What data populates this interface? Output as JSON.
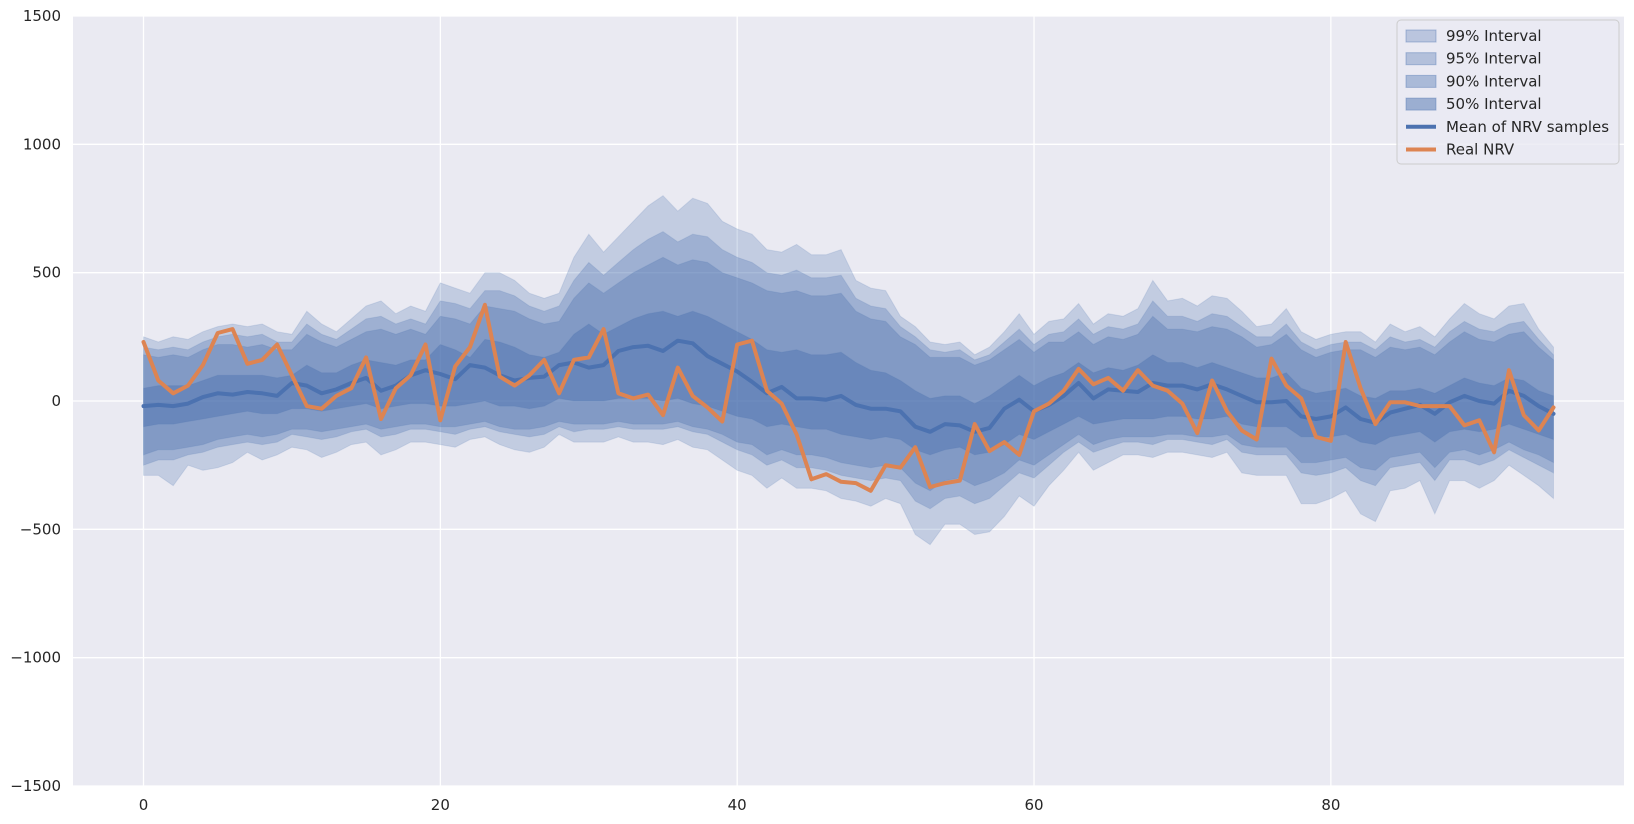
{
  "chart_data": {
    "type": "line",
    "title": "",
    "xlabel": "",
    "ylabel": "",
    "xlim": [
      -4.75,
      99.75
    ],
    "ylim": [
      -1500,
      1500
    ],
    "x_ticks": [
      0,
      20,
      40,
      60,
      80
    ],
    "y_ticks": [
      -1500,
      -1000,
      -500,
      0,
      500,
      1000,
      1500
    ],
    "x_tick_labels": [
      "0",
      "20",
      "40",
      "60",
      "80"
    ],
    "y_tick_labels": [
      "−1500",
      "−1000",
      "−500",
      "0",
      "500",
      "1000",
      "1500"
    ],
    "grid": true,
    "legend_position": "top-right",
    "colors": {
      "background": "#eaeaf2",
      "grid": "#ffffff",
      "band": "#4c72b0",
      "mean": "#4c72b0",
      "real": "#dd8452"
    },
    "x": [
      0,
      1,
      2,
      3,
      4,
      5,
      6,
      7,
      8,
      9,
      10,
      11,
      12,
      13,
      14,
      15,
      16,
      17,
      18,
      19,
      20,
      21,
      22,
      23,
      24,
      25,
      26,
      27,
      28,
      29,
      30,
      31,
      32,
      33,
      34,
      35,
      36,
      37,
      38,
      39,
      40,
      41,
      42,
      43,
      44,
      45,
      46,
      47,
      48,
      49,
      50,
      51,
      52,
      53,
      54,
      55,
      56,
      57,
      58,
      59,
      60,
      61,
      62,
      63,
      64,
      65,
      66,
      67,
      68,
      69,
      70,
      71,
      72,
      73,
      74,
      75,
      76,
      77,
      78,
      79,
      80,
      81,
      82,
      83,
      84,
      85,
      86,
      87,
      88,
      89,
      90,
      91,
      92,
      93,
      94,
      95
    ],
    "bands": [
      {
        "name": "99% Interval",
        "opacity": 0.25,
        "lower": [
          -290,
          -290,
          -330,
          -250,
          -270,
          -260,
          -240,
          -200,
          -230,
          -210,
          -180,
          -190,
          -220,
          -200,
          -170,
          -160,
          -210,
          -190,
          -160,
          -160,
          -170,
          -180,
          -150,
          -140,
          -170,
          -190,
          -200,
          -180,
          -130,
          -160,
          -160,
          -160,
          -140,
          -160,
          -160,
          -170,
          -150,
          -180,
          -190,
          -230,
          -270,
          -290,
          -340,
          -300,
          -340,
          -340,
          -350,
          -380,
          -390,
          -410,
          -380,
          -400,
          -520,
          -560,
          -480,
          -480,
          -520,
          -510,
          -450,
          -370,
          -410,
          -330,
          -270,
          -200,
          -270,
          -240,
          -210,
          -210,
          -220,
          -200,
          -200,
          -210,
          -220,
          -200,
          -280,
          -290,
          -290,
          -290,
          -400,
          -400,
          -380,
          -350,
          -440,
          -470,
          -350,
          -340,
          -310,
          -440,
          -310,
          -310,
          -340,
          -310,
          -250,
          -290,
          -330,
          -380
        ],
        "upper": [
          250,
          230,
          250,
          240,
          270,
          290,
          300,
          290,
          300,
          270,
          260,
          350,
          300,
          270,
          320,
          370,
          390,
          340,
          370,
          350,
          460,
          440,
          420,
          500,
          500,
          470,
          420,
          400,
          420,
          560,
          650,
          580,
          640,
          700,
          760,
          800,
          740,
          790,
          770,
          700,
          670,
          650,
          590,
          580,
          610,
          570,
          570,
          590,
          470,
          440,
          430,
          330,
          290,
          230,
          220,
          230,
          180,
          210,
          270,
          340,
          260,
          310,
          320,
          380,
          300,
          340,
          330,
          360,
          470,
          390,
          400,
          370,
          410,
          400,
          350,
          290,
          300,
          360,
          270,
          240,
          260,
          270,
          270,
          230,
          300,
          270,
          290,
          250,
          320,
          380,
          340,
          320,
          370,
          380,
          280,
          210
        ]
      },
      {
        "name": "95% Interval",
        "opacity": 0.3,
        "lower": [
          -250,
          -230,
          -230,
          -210,
          -200,
          -180,
          -170,
          -160,
          -170,
          -160,
          -130,
          -140,
          -150,
          -140,
          -120,
          -110,
          -140,
          -130,
          -110,
          -110,
          -120,
          -130,
          -110,
          -100,
          -120,
          -130,
          -140,
          -130,
          -100,
          -120,
          -110,
          -110,
          -100,
          -110,
          -110,
          -110,
          -100,
          -120,
          -130,
          -160,
          -190,
          -210,
          -250,
          -230,
          -260,
          -260,
          -270,
          -290,
          -300,
          -310,
          -300,
          -310,
          -390,
          -420,
          -380,
          -370,
          -400,
          -380,
          -330,
          -280,
          -300,
          -250,
          -200,
          -160,
          -200,
          -180,
          -160,
          -160,
          -170,
          -150,
          -150,
          -160,
          -170,
          -150,
          -200,
          -210,
          -210,
          -210,
          -280,
          -290,
          -280,
          -260,
          -310,
          -330,
          -260,
          -250,
          -240,
          -310,
          -230,
          -230,
          -250,
          -230,
          -190,
          -220,
          -250,
          -280
        ],
        "upper": [
          210,
          200,
          210,
          200,
          230,
          250,
          260,
          250,
          260,
          230,
          230,
          300,
          260,
          240,
          280,
          320,
          330,
          300,
          320,
          300,
          390,
          380,
          360,
          430,
          430,
          410,
          370,
          350,
          370,
          470,
          540,
          490,
          540,
          590,
          630,
          660,
          620,
          650,
          640,
          590,
          560,
          540,
          500,
          490,
          510,
          480,
          480,
          490,
          400,
          370,
          360,
          290,
          250,
          200,
          190,
          200,
          160,
          180,
          230,
          280,
          220,
          260,
          270,
          320,
          260,
          290,
          280,
          300,
          390,
          330,
          330,
          310,
          340,
          330,
          290,
          250,
          250,
          300,
          230,
          200,
          220,
          230,
          230,
          200,
          250,
          230,
          240,
          210,
          270,
          310,
          280,
          270,
          300,
          310,
          240,
          180
        ]
      },
      {
        "name": "90% Interval",
        "opacity": 0.35,
        "lower": [
          -210,
          -190,
          -190,
          -180,
          -170,
          -150,
          -140,
          -130,
          -140,
          -130,
          -110,
          -110,
          -120,
          -110,
          -100,
          -90,
          -110,
          -100,
          -90,
          -90,
          -100,
          -100,
          -90,
          -80,
          -100,
          -110,
          -110,
          -100,
          -80,
          -90,
          -90,
          -90,
          -80,
          -90,
          -90,
          -90,
          -80,
          -100,
          -110,
          -130,
          -160,
          -170,
          -210,
          -190,
          -210,
          -210,
          -220,
          -240,
          -250,
          -260,
          -250,
          -260,
          -320,
          -350,
          -310,
          -300,
          -330,
          -310,
          -280,
          -230,
          -250,
          -210,
          -170,
          -130,
          -170,
          -150,
          -140,
          -140,
          -140,
          -130,
          -130,
          -140,
          -140,
          -130,
          -170,
          -180,
          -180,
          -180,
          -240,
          -240,
          -230,
          -220,
          -260,
          -270,
          -220,
          -210,
          -200,
          -260,
          -200,
          -190,
          -210,
          -190,
          -160,
          -190,
          -210,
          -240
        ],
        "upper": [
          180,
          170,
          180,
          170,
          200,
          220,
          220,
          210,
          220,
          200,
          200,
          260,
          230,
          210,
          240,
          270,
          280,
          260,
          280,
          260,
          330,
          320,
          300,
          370,
          360,
          350,
          320,
          300,
          310,
          400,
          460,
          420,
          460,
          500,
          530,
          560,
          530,
          550,
          540,
          500,
          480,
          460,
          430,
          420,
          430,
          410,
          410,
          420,
          350,
          320,
          310,
          250,
          220,
          170,
          170,
          170,
          140,
          160,
          200,
          240,
          190,
          230,
          230,
          270,
          220,
          250,
          240,
          260,
          330,
          280,
          280,
          270,
          290,
          280,
          250,
          210,
          220,
          260,
          200,
          170,
          190,
          200,
          200,
          170,
          210,
          200,
          210,
          180,
          230,
          270,
          240,
          230,
          260,
          270,
          210,
          160
        ]
      },
      {
        "name": "50% Interval",
        "opacity": 0.45,
        "lower": [
          -100,
          -90,
          -90,
          -80,
          -70,
          -60,
          -50,
          -40,
          -50,
          -50,
          -30,
          -30,
          -40,
          -30,
          -20,
          -10,
          -30,
          -20,
          -10,
          -10,
          -20,
          -20,
          -10,
          0,
          -20,
          -20,
          -30,
          -20,
          10,
          0,
          0,
          0,
          10,
          10,
          10,
          0,
          10,
          -10,
          -20,
          -40,
          -60,
          -70,
          -100,
          -90,
          -100,
          -110,
          -110,
          -130,
          -140,
          -150,
          -140,
          -150,
          -190,
          -210,
          -190,
          -180,
          -210,
          -200,
          -170,
          -130,
          -150,
          -120,
          -90,
          -60,
          -90,
          -80,
          -70,
          -70,
          -70,
          -60,
          -60,
          -70,
          -70,
          -60,
          -90,
          -100,
          -100,
          -100,
          -140,
          -140,
          -140,
          -130,
          -160,
          -170,
          -140,
          -130,
          -120,
          -160,
          -120,
          -110,
          -120,
          -110,
          -90,
          -110,
          -130,
          -150
        ],
        "upper": [
          50,
          60,
          60,
          60,
          80,
          100,
          100,
          100,
          100,
          90,
          100,
          140,
          110,
          110,
          140,
          160,
          150,
          140,
          160,
          160,
          220,
          200,
          170,
          240,
          230,
          210,
          180,
          170,
          190,
          260,
          300,
          260,
          290,
          320,
          340,
          350,
          330,
          350,
          330,
          300,
          270,
          240,
          200,
          190,
          200,
          180,
          180,
          190,
          150,
          120,
          110,
          80,
          40,
          10,
          20,
          20,
          -10,
          20,
          60,
          100,
          60,
          90,
          110,
          150,
          110,
          130,
          120,
          140,
          180,
          150,
          150,
          130,
          150,
          130,
          110,
          90,
          90,
          110,
          50,
          30,
          40,
          50,
          20,
          10,
          40,
          40,
          50,
          30,
          60,
          90,
          70,
          60,
          90,
          80,
          40,
          20
        ]
      }
    ],
    "series": [
      {
        "name": "Mean of NRV samples",
        "color": "#4c72b0",
        "values": [
          -20,
          -15,
          -20,
          -10,
          15,
          30,
          25,
          35,
          30,
          20,
          70,
          60,
          30,
          45,
          70,
          90,
          40,
          60,
          100,
          120,
          105,
          85,
          140,
          130,
          100,
          80,
          90,
          95,
          140,
          150,
          130,
          140,
          195,
          210,
          215,
          195,
          235,
          225,
          175,
          145,
          115,
          75,
          30,
          55,
          10,
          10,
          5,
          20,
          -15,
          -30,
          -30,
          -40,
          -100,
          -120,
          -90,
          -95,
          -120,
          -105,
          -30,
          5,
          -40,
          -15,
          20,
          70,
          10,
          45,
          40,
          35,
          70,
          60,
          60,
          45,
          65,
          45,
          20,
          -5,
          -5,
          0,
          -60,
          -70,
          -60,
          -25,
          -70,
          -85,
          -45,
          -30,
          -15,
          -50,
          -5,
          20,
          0,
          -10,
          40,
          20,
          -20,
          -50
        ]
      },
      {
        "name": "Real NRV",
        "color": "#dd8452",
        "values": [
          230,
          80,
          30,
          60,
          140,
          265,
          280,
          145,
          160,
          220,
          100,
          -20,
          -30,
          20,
          50,
          170,
          -70,
          50,
          100,
          220,
          -75,
          135,
          210,
          375,
          95,
          60,
          100,
          160,
          30,
          160,
          170,
          280,
          30,
          10,
          25,
          -55,
          130,
          20,
          -25,
          -80,
          220,
          235,
          40,
          -10,
          -130,
          -305,
          -285,
          -315,
          -320,
          -350,
          -250,
          -260,
          -180,
          -335,
          -320,
          -310,
          -90,
          -195,
          -160,
          -210,
          -40,
          -10,
          40,
          125,
          65,
          90,
          40,
          120,
          60,
          40,
          -10,
          -125,
          80,
          -40,
          -115,
          -150,
          165,
          60,
          10,
          -140,
          -155,
          230,
          50,
          -90,
          -5,
          -5,
          -20,
          -20,
          -20,
          -95,
          -75,
          -200,
          120,
          -55,
          -115,
          -25
        ]
      }
    ],
    "legend": [
      {
        "label": "99% Interval",
        "kind": "band",
        "opacity": 0.25
      },
      {
        "label": "95% Interval",
        "kind": "band",
        "opacity": 0.3
      },
      {
        "label": "90% Interval",
        "kind": "band",
        "opacity": 0.35
      },
      {
        "label": "50% Interval",
        "kind": "band",
        "opacity": 0.45
      },
      {
        "label": "Mean of NRV samples",
        "kind": "line",
        "color": "#4c72b0"
      },
      {
        "label": "Real NRV",
        "kind": "line",
        "color": "#dd8452"
      }
    ]
  }
}
